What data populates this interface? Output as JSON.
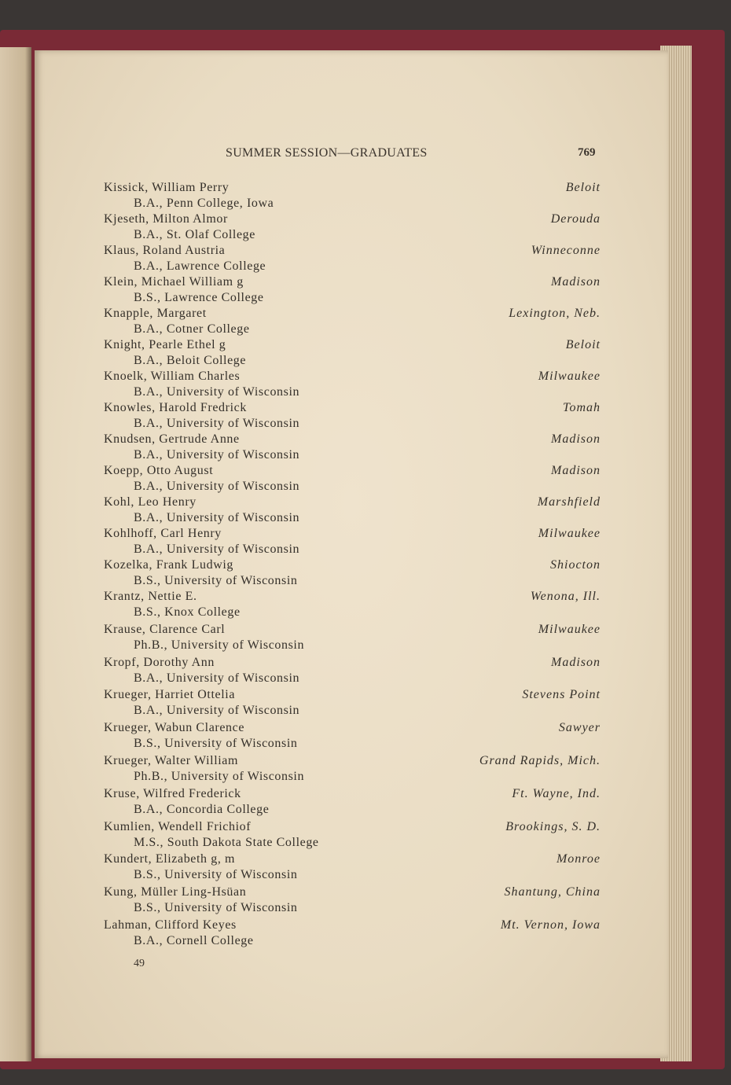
{
  "header": {
    "title": "SUMMER SESSION—GRADUATES",
    "page_number": "769"
  },
  "entries": [
    {
      "name": "Kissick, William Perry",
      "degree": "B.A., Penn College, Iowa",
      "place": "Beloit"
    },
    {
      "name": "Kjeseth, Milton Almor",
      "degree": "B.A., St. Olaf College",
      "place": "Derouda"
    },
    {
      "name": "Klaus, Roland Austria",
      "degree": "B.A., Lawrence College",
      "place": "Winneconne"
    },
    {
      "name": "Klein, Michael William g",
      "degree": "B.S., Lawrence College",
      "place": "Madison"
    },
    {
      "name": "Knapple, Margaret",
      "degree": "B.A., Cotner College",
      "place": "Lexington, Neb."
    },
    {
      "name": "Knight, Pearle Ethel g",
      "degree": "B.A., Beloit College",
      "place": "Beloit"
    },
    {
      "name": "Knoelk, William Charles",
      "degree": "B.A., University of Wisconsin",
      "place": "Milwaukee"
    },
    {
      "name": "Knowles, Harold Fredrick",
      "degree": "B.A., University of Wisconsin",
      "place": "Tomah"
    },
    {
      "name": "Knudsen, Gertrude Anne",
      "degree": "B.A., University of Wisconsin",
      "place": "Madison"
    },
    {
      "name": "Koepp, Otto August",
      "degree": "B.A., University of Wisconsin",
      "place": "Madison"
    },
    {
      "name": "Kohl, Leo Henry",
      "degree": "B.A., University of Wisconsin",
      "place": "Marshfield"
    },
    {
      "name": "Kohlhoff, Carl Henry",
      "degree": "B.A., University of Wisconsin",
      "place": "Milwaukee"
    },
    {
      "name": "Kozelka, Frank Ludwig",
      "degree": "B.S., University of Wisconsin",
      "place": "Shiocton"
    },
    {
      "name": "Krantz, Nettie E.",
      "degree": "B.S., Knox College",
      "place": "Wenona, Ill."
    },
    {
      "name": "Krause, Clarence Carl",
      "degree": "Ph.B., University of Wisconsin",
      "place": "Milwaukee"
    },
    {
      "name": "Kropf, Dorothy Ann",
      "degree": "B.A., University of Wisconsin",
      "place": "Madison"
    },
    {
      "name": "Krueger, Harriet Ottelia",
      "degree": "B.A., University of Wisconsin",
      "place": "Stevens Point"
    },
    {
      "name": "Krueger, Wabun Clarence",
      "degree": "B.S., University of Wisconsin",
      "place": "Sawyer"
    },
    {
      "name": "Krueger, Walter William",
      "degree": "Ph.B., University of Wisconsin",
      "place": "Grand Rapids, Mich."
    },
    {
      "name": "Kruse, Wilfred Frederick",
      "degree": "B.A., Concordia College",
      "place": "Ft. Wayne, Ind."
    },
    {
      "name": "Kumlien, Wendell Frichiof",
      "degree": "M.S., South Dakota State College",
      "place": "Brookings, S. D."
    },
    {
      "name": "Kundert, Elizabeth g, m",
      "degree": "B.S., University of Wisconsin",
      "place": "Monroe"
    },
    {
      "name": "Kung, Müller Ling-Hsüan",
      "degree": "B.S., University of Wisconsin",
      "place": "Shantung, China"
    },
    {
      "name": "Lahman, Clifford Keyes",
      "degree": "B.A., Cornell College",
      "place": "Mt. Vernon, Iowa"
    }
  ],
  "signature_mark": "49"
}
